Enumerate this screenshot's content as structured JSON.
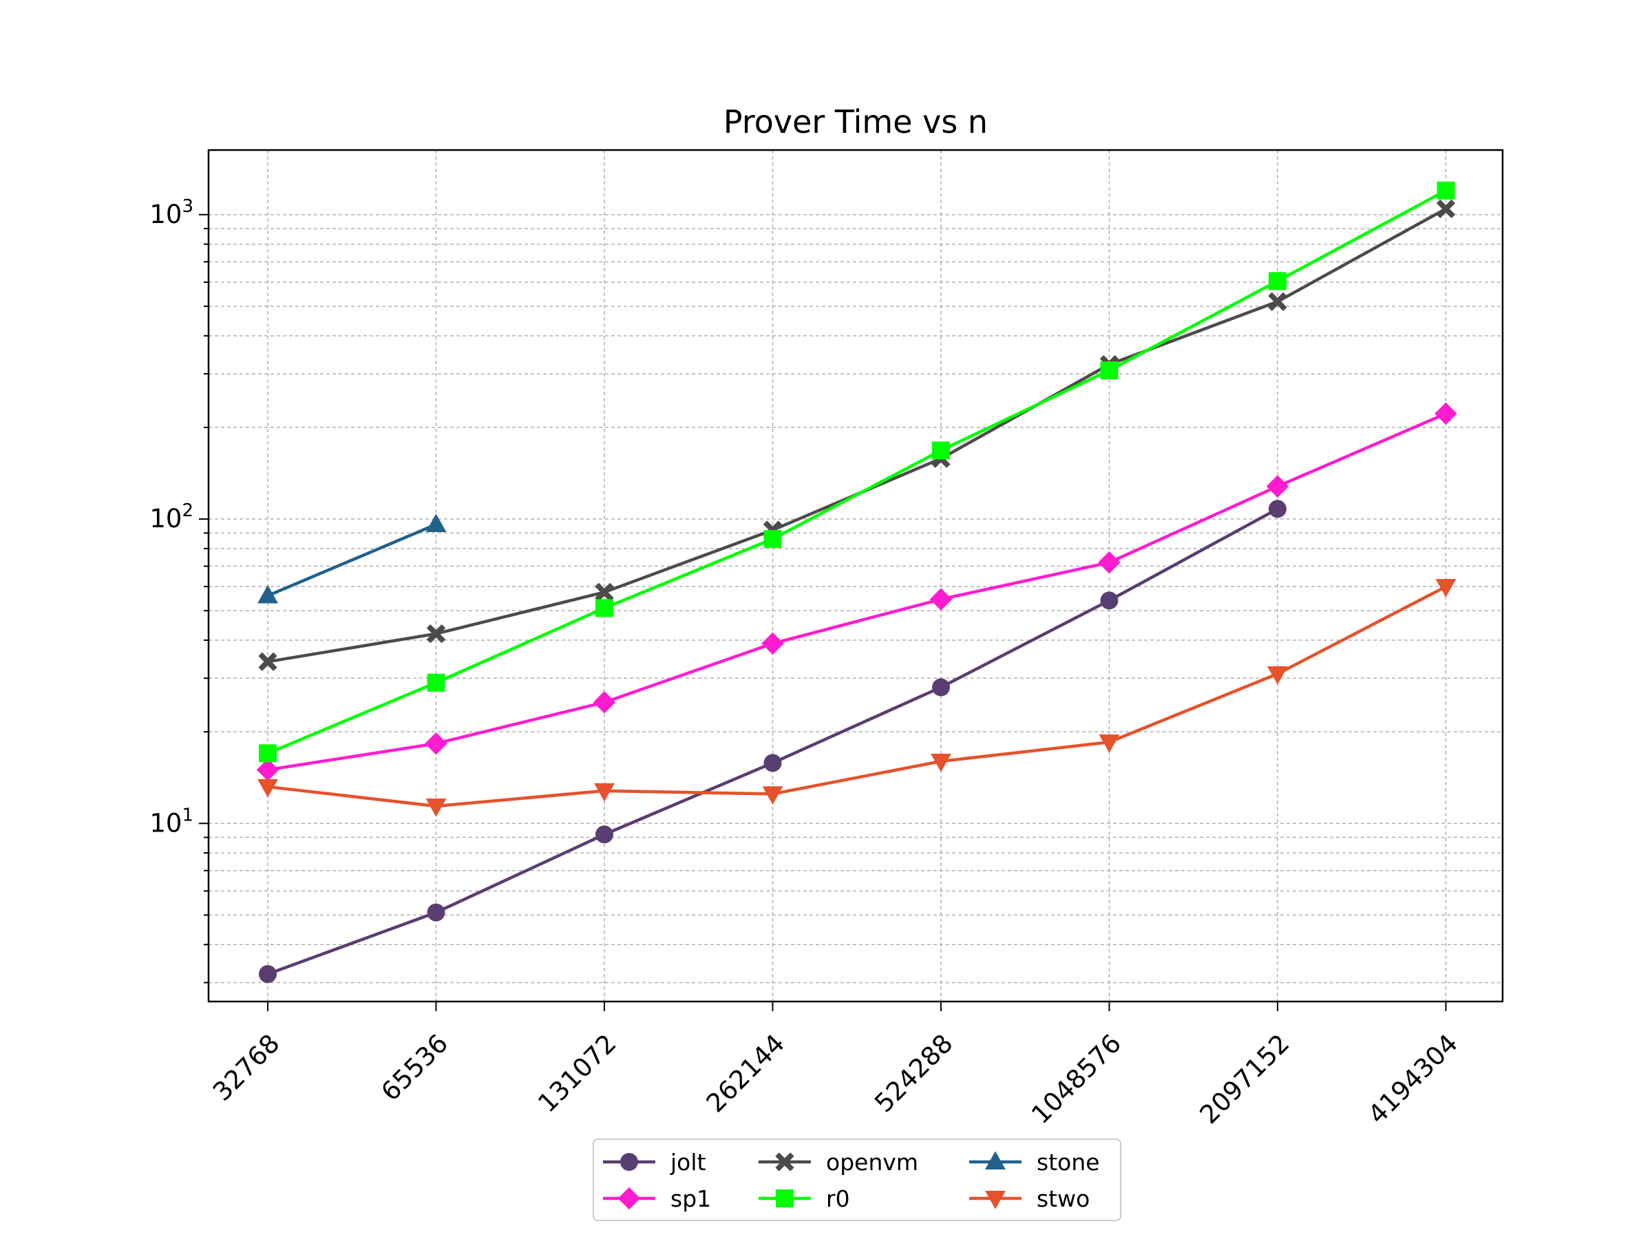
{
  "chart_data": {
    "type": "line",
    "title": "Prover Time vs n",
    "xlabel": "",
    "ylabel": "",
    "y_scale": "log",
    "ylim": [
      2.6,
      1630
    ],
    "grid": true,
    "legend_position": "bottom-center",
    "categories": [
      "32768",
      "65536",
      "131072",
      "262144",
      "524288",
      "1048576",
      "2097152",
      "4194304"
    ],
    "y_ticks": [
      {
        "value": 10,
        "label": "10",
        "exponent": "1"
      },
      {
        "value": 100,
        "label": "10",
        "exponent": "2"
      },
      {
        "value": 1000,
        "label": "10",
        "exponent": "3"
      }
    ],
    "series": [
      {
        "name": "jolt",
        "color": "#5a3d71",
        "marker": "circle",
        "values": [
          3.2,
          5.1,
          9.2,
          15.8,
          28.0,
          54.0,
          108.0,
          null
        ]
      },
      {
        "name": "sp1",
        "color": "#ff1ccf",
        "marker": "diamond",
        "values": [
          15.0,
          18.3,
          25.0,
          39.0,
          54.5,
          72.0,
          128.0,
          222.0
        ]
      },
      {
        "name": "openvm",
        "color": "#4b4b4b",
        "marker": "x",
        "values": [
          34.0,
          42.0,
          57.5,
          92.0,
          158.0,
          322.0,
          518.0,
          1045.0
        ]
      },
      {
        "name": "r0",
        "color": "#00ff00",
        "marker": "square",
        "values": [
          17.0,
          29.0,
          51.0,
          86.0,
          168.0,
          308.0,
          605.0,
          1200.0
        ]
      },
      {
        "name": "stone",
        "color": "#21618c",
        "marker": "triangle-up",
        "values": [
          56.0,
          96.0,
          null,
          null,
          null,
          null,
          null,
          null
        ]
      },
      {
        "name": "stwo",
        "color": "#e5522b",
        "marker": "triangle-down",
        "values": [
          13.2,
          11.4,
          12.8,
          12.5,
          16.0,
          18.5,
          31.0,
          60.0
        ]
      }
    ]
  }
}
